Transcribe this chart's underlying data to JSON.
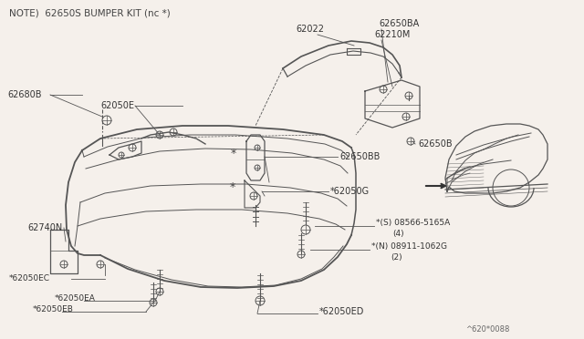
{
  "bg_color": "#f5f0eb",
  "line_color": "#555555",
  "text_color": "#333333",
  "title_text": "NOTE) 62650S BUMPER KIT (nc *)",
  "footer_text": "^620*0088",
  "note_text": "NOTE) 62650S BUMPER KIT (nc *)"
}
